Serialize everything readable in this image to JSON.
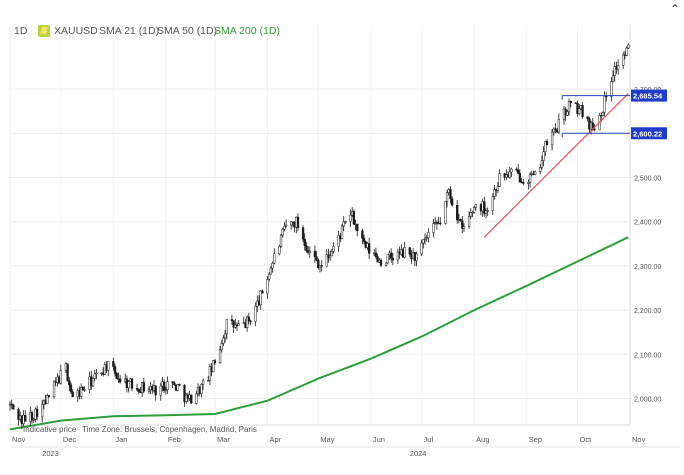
{
  "header": {
    "timeframe": "1D",
    "symbol": "XAUUSD",
    "indicators": [
      "SMA 21 (1D)",
      "SMA 50 (1D)",
      "SMA 200 (1D)"
    ],
    "sma200_color": "#2f9e3a",
    "symbol_icon": "gold-bar-icon"
  },
  "footer": {
    "indicative": "Indicative price",
    "timezone": "Time Zone: Brussels, Copenhagen, Madrid, Paris"
  },
  "chart_data": {
    "type": "candlestick",
    "ylim": [
      1940,
      2800
    ],
    "y_ticks": [
      "2,000.00",
      "2,100.00",
      "2,200.00",
      "2,300.00",
      "2,400.00",
      "2,500.00",
      "2,600.00",
      "2,700.00"
    ],
    "x_tick_labels": [
      "Nov",
      "Dec",
      "Jan",
      "Feb",
      "Mar",
      "Apr",
      "May",
      "Jun",
      "Jul",
      "Aug",
      "Sep",
      "Oct",
      "Nov"
    ],
    "year_labels": [
      "2023",
      "2024"
    ],
    "price_path": [
      [
        "2023-11-01",
        1985
      ],
      [
        "2023-11-08",
        1950
      ],
      [
        "2023-11-15",
        1965
      ],
      [
        "2023-11-22",
        1990
      ],
      [
        "2023-11-29",
        2040
      ],
      [
        "2023-12-04",
        2070
      ],
      [
        "2023-12-08",
        2000
      ],
      [
        "2023-12-15",
        2025
      ],
      [
        "2023-12-22",
        2050
      ],
      [
        "2023-12-28",
        2075
      ],
      [
        "2024-01-05",
        2045
      ],
      [
        "2024-01-12",
        2030
      ],
      [
        "2024-01-19",
        2025
      ],
      [
        "2024-01-26",
        2020
      ],
      [
        "2024-02-02",
        2035
      ],
      [
        "2024-02-09",
        2025
      ],
      [
        "2024-02-14",
        1995
      ],
      [
        "2024-02-23",
        2030
      ],
      [
        "2024-03-01",
        2080
      ],
      [
        "2024-03-08",
        2170
      ],
      [
        "2024-03-15",
        2160
      ],
      [
        "2024-03-21",
        2175
      ],
      [
        "2024-03-28",
        2230
      ],
      [
        "2024-04-05",
        2320
      ],
      [
        "2024-04-12",
        2390
      ],
      [
        "2024-04-18",
        2400
      ],
      [
        "2024-04-26",
        2330
      ],
      [
        "2024-05-03",
        2300
      ],
      [
        "2024-05-10",
        2340
      ],
      [
        "2024-05-20",
        2420
      ],
      [
        "2024-05-28",
        2345
      ],
      [
        "2024-06-07",
        2310
      ],
      [
        "2024-06-14",
        2320
      ],
      [
        "2024-06-21",
        2330
      ],
      [
        "2024-06-28",
        2320
      ],
      [
        "2024-07-05",
        2370
      ],
      [
        "2024-07-12",
        2400
      ],
      [
        "2024-07-17",
        2470
      ],
      [
        "2024-07-25",
        2380
      ],
      [
        "2024-08-02",
        2440
      ],
      [
        "2024-08-09",
        2430
      ],
      [
        "2024-08-16",
        2500
      ],
      [
        "2024-08-23",
        2510
      ],
      [
        "2024-08-30",
        2500
      ],
      [
        "2024-09-06",
        2500
      ],
      [
        "2024-09-13",
        2580
      ],
      [
        "2024-09-20",
        2620
      ],
      [
        "2024-09-26",
        2665
      ],
      [
        "2024-10-04",
        2650
      ],
      [
        "2024-10-10",
        2610
      ],
      [
        "2024-10-16",
        2660
      ],
      [
        "2024-10-22",
        2740
      ],
      [
        "2024-10-31",
        2790
      ]
    ],
    "sma200": [
      [
        "2023-11-01",
        1930
      ],
      [
        "2023-12-01",
        1950
      ],
      [
        "2024-01-01",
        1960
      ],
      [
        "2024-02-01",
        1962
      ],
      [
        "2024-03-01",
        1965
      ],
      [
        "2024-04-01",
        1995
      ],
      [
        "2024-05-01",
        2045
      ],
      [
        "2024-06-01",
        2090
      ],
      [
        "2024-07-01",
        2140
      ],
      [
        "2024-08-01",
        2200
      ],
      [
        "2024-09-01",
        2255
      ],
      [
        "2024-10-01",
        2310
      ],
      [
        "2024-10-31",
        2365
      ]
    ],
    "sma200_name": "SMA 200 (1D)",
    "trendline": {
      "from": [
        "2024-08-07",
        2365
      ],
      "to": [
        "2024-10-31",
        2690
      ],
      "color": "#e05050"
    },
    "levels": [
      {
        "value": 2685.54,
        "label": "2,685.54",
        "from": "2024-09-22"
      },
      {
        "value": 2600.22,
        "label": "2,600.22",
        "from": "2024-09-22"
      }
    ]
  }
}
